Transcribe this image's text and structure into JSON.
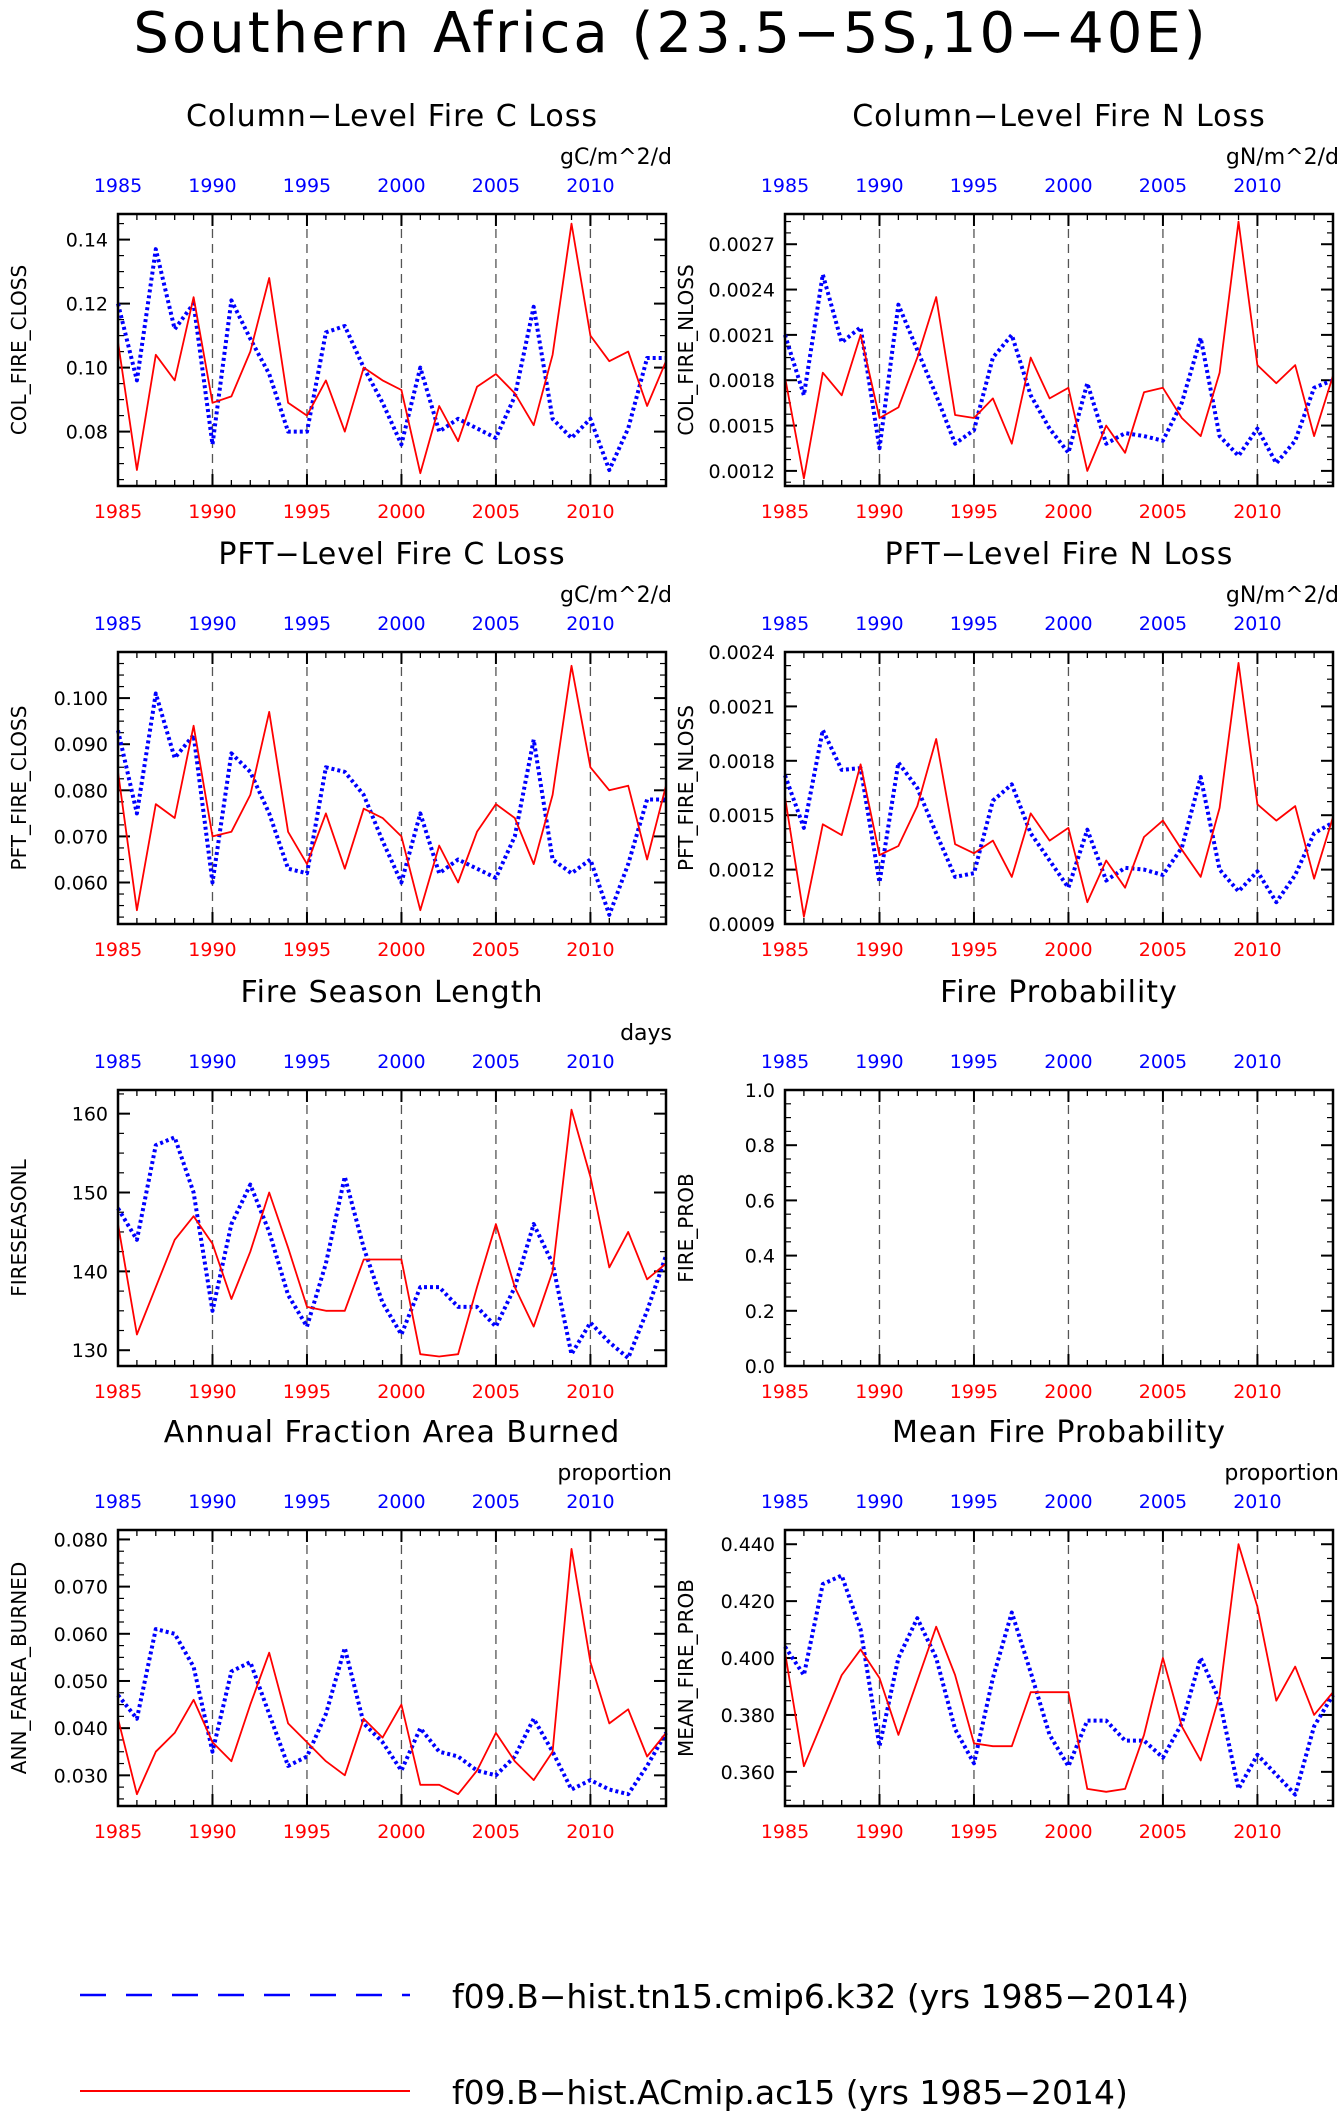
{
  "main_title": "Southern Africa (23.5−5S,10−40E)",
  "x_ticks": [
    "1985",
    "1990",
    "1995",
    "2000",
    "2005",
    "2010"
  ],
  "colors": {
    "series1": "#0000ff",
    "series2": "#ff0000",
    "text": "#000000",
    "grid": "#555555"
  },
  "legend": [
    {
      "label": "f09.B−hist.tn15.cmip6.k32 (yrs 1985−2014)",
      "color": "#0000ff",
      "style": "dashed"
    },
    {
      "label": "f09.B−hist.ACmip.ac15 (yrs 1985−2014)",
      "color": "#ff0000",
      "style": "solid"
    }
  ],
  "chart_data": [
    {
      "type": "line",
      "title": "Column−Level Fire C Loss",
      "units": "gC/m^2/d",
      "ylabel": "COL_FIRE_CLOSS",
      "xlim": [
        1985,
        2014
      ],
      "ylim": [
        0.063,
        0.148
      ],
      "y_ticks": [
        "0.08",
        "0.10",
        "0.12",
        "0.14"
      ],
      "x": [
        1985,
        1986,
        1987,
        1988,
        1989,
        1990,
        1991,
        1992,
        1993,
        1994,
        1995,
        1996,
        1997,
        1998,
        1999,
        2000,
        2001,
        2002,
        2003,
        2004,
        2005,
        2006,
        2007,
        2008,
        2009,
        2010,
        2011,
        2012,
        2013,
        2014
      ],
      "series": [
        {
          "style": "dashed",
          "color": "#0000ff",
          "values": [
            0.12,
            0.096,
            0.137,
            0.112,
            0.12,
            0.076,
            0.121,
            0.109,
            0.098,
            0.08,
            0.08,
            0.111,
            0.113,
            0.1,
            0.089,
            0.076,
            0.1,
            0.08,
            0.084,
            0.081,
            0.078,
            0.091,
            0.119,
            0.084,
            0.078,
            0.084,
            0.068,
            0.081,
            0.103,
            0.103
          ]
        },
        {
          "style": "solid",
          "color": "#ff0000",
          "values": [
            0.108,
            0.068,
            0.104,
            0.096,
            0.122,
            0.089,
            0.091,
            0.105,
            0.128,
            0.089,
            0.085,
            0.096,
            0.08,
            0.1,
            0.096,
            0.093,
            0.067,
            0.088,
            0.077,
            0.094,
            0.098,
            0.092,
            0.082,
            0.104,
            0.145,
            0.11,
            0.102,
            0.105,
            0.088,
            0.102
          ]
        }
      ]
    },
    {
      "type": "line",
      "title": "Column−Level Fire N Loss",
      "units": "gN/m^2/d",
      "ylabel": "COL_FIRE_NLOSS",
      "xlim": [
        1985,
        2014
      ],
      "ylim": [
        0.0011,
        0.0029
      ],
      "y_ticks": [
        "0.0012",
        "0.0015",
        "0.0018",
        "0.0021",
        "0.0024",
        "0.0027"
      ],
      "x": [
        1985,
        1986,
        1987,
        1988,
        1989,
        1990,
        1991,
        1992,
        1993,
        1994,
        1995,
        1996,
        1997,
        1998,
        1999,
        2000,
        2001,
        2002,
        2003,
        2004,
        2005,
        2006,
        2007,
        2008,
        2009,
        2010,
        2011,
        2012,
        2013,
        2014
      ],
      "series": [
        {
          "style": "dashed",
          "color": "#0000ff",
          "values": [
            0.0021,
            0.0017,
            0.0025,
            0.00205,
            0.00215,
            0.00135,
            0.0023,
            0.002,
            0.0017,
            0.00138,
            0.00147,
            0.00195,
            0.0021,
            0.0017,
            0.00148,
            0.00132,
            0.00178,
            0.00138,
            0.00145,
            0.00143,
            0.0014,
            0.00165,
            0.00208,
            0.00143,
            0.0013,
            0.00148,
            0.00125,
            0.0014,
            0.00175,
            0.0018
          ]
        },
        {
          "style": "solid",
          "color": "#ff0000",
          "values": [
            0.00182,
            0.00115,
            0.00185,
            0.0017,
            0.0021,
            0.00155,
            0.00162,
            0.00195,
            0.00235,
            0.00157,
            0.00155,
            0.00168,
            0.00138,
            0.00195,
            0.00168,
            0.00175,
            0.0012,
            0.0015,
            0.00132,
            0.00172,
            0.00175,
            0.00155,
            0.00143,
            0.00185,
            0.00285,
            0.0019,
            0.00178,
            0.0019,
            0.00143,
            0.00183
          ]
        }
      ]
    },
    {
      "type": "line",
      "title": "PFT−Level Fire C Loss",
      "units": "gC/m^2/d",
      "ylabel": "PFT_FIRE_CLOSS",
      "xlim": [
        1985,
        2014
      ],
      "ylim": [
        0.051,
        0.11
      ],
      "y_ticks": [
        "0.060",
        "0.070",
        "0.080",
        "0.090",
        "0.100"
      ],
      "x": [
        1985,
        1986,
        1987,
        1988,
        1989,
        1990,
        1991,
        1992,
        1993,
        1994,
        1995,
        1996,
        1997,
        1998,
        1999,
        2000,
        2001,
        2002,
        2003,
        2004,
        2005,
        2006,
        2007,
        2008,
        2009,
        2010,
        2011,
        2012,
        2013,
        2014
      ],
      "series": [
        {
          "style": "dashed",
          "color": "#0000ff",
          "values": [
            0.093,
            0.075,
            0.101,
            0.087,
            0.092,
            0.06,
            0.088,
            0.084,
            0.075,
            0.063,
            0.062,
            0.085,
            0.084,
            0.079,
            0.069,
            0.06,
            0.075,
            0.062,
            0.065,
            0.063,
            0.061,
            0.07,
            0.091,
            0.065,
            0.062,
            0.065,
            0.053,
            0.064,
            0.078,
            0.078
          ]
        },
        {
          "style": "solid",
          "color": "#ff0000",
          "values": [
            0.084,
            0.054,
            0.077,
            0.074,
            0.094,
            0.07,
            0.071,
            0.079,
            0.097,
            0.071,
            0.064,
            0.075,
            0.063,
            0.076,
            0.074,
            0.07,
            0.054,
            0.068,
            0.06,
            0.071,
            0.077,
            0.074,
            0.064,
            0.079,
            0.107,
            0.085,
            0.08,
            0.081,
            0.065,
            0.081
          ]
        }
      ]
    },
    {
      "type": "line",
      "title": "PFT−Level Fire N Loss",
      "units": "gN/m^2/d",
      "ylabel": "PFT_FIRE_NLOSS",
      "xlim": [
        1985,
        2014
      ],
      "ylim": [
        0.0009,
        0.0024
      ],
      "y_ticks": [
        "0.0009",
        "0.0012",
        "0.0015",
        "0.0018",
        "0.0021",
        "0.0024"
      ],
      "x": [
        1985,
        1986,
        1987,
        1988,
        1989,
        1990,
        1991,
        1992,
        1993,
        1994,
        1995,
        1996,
        1997,
        1998,
        1999,
        2000,
        2001,
        2002,
        2003,
        2004,
        2005,
        2006,
        2007,
        2008,
        2009,
        2010,
        2011,
        2012,
        2013,
        2014
      ],
      "series": [
        {
          "style": "dashed",
          "color": "#0000ff",
          "values": [
            0.00172,
            0.00143,
            0.00197,
            0.00175,
            0.00176,
            0.00113,
            0.00179,
            0.00165,
            0.0014,
            0.00116,
            0.00118,
            0.00158,
            0.00167,
            0.0014,
            0.00125,
            0.0011,
            0.00142,
            0.00114,
            0.00121,
            0.0012,
            0.00117,
            0.00132,
            0.00171,
            0.0012,
            0.00108,
            0.00119,
            0.00102,
            0.00117,
            0.0014,
            0.00146
          ]
        },
        {
          "style": "solid",
          "color": "#ff0000",
          "values": [
            0.0016,
            0.00094,
            0.00145,
            0.00139,
            0.00178,
            0.00128,
            0.00133,
            0.00155,
            0.00192,
            0.00134,
            0.00129,
            0.00136,
            0.00116,
            0.00151,
            0.00136,
            0.00143,
            0.00102,
            0.00125,
            0.0011,
            0.00138,
            0.00147,
            0.00131,
            0.00116,
            0.00154,
            0.00234,
            0.00156,
            0.00147,
            0.00155,
            0.00115,
            0.00149
          ]
        }
      ]
    },
    {
      "type": "line",
      "title": "Fire Season Length",
      "units": "days",
      "ylabel": "FIRESEASONL",
      "xlim": [
        1985,
        2014
      ],
      "ylim": [
        128.0,
        163.0
      ],
      "y_ticks": [
        "130",
        "140",
        "150",
        "160"
      ],
      "x": [
        1985,
        1986,
        1987,
        1988,
        1989,
        1990,
        1991,
        1992,
        1993,
        1994,
        1995,
        1996,
        1997,
        1998,
        1999,
        2000,
        2001,
        2002,
        2003,
        2004,
        2005,
        2006,
        2007,
        2008,
        2009,
        2010,
        2011,
        2012,
        2013,
        2014
      ],
      "series": [
        {
          "style": "dashed",
          "color": "#0000ff",
          "values": [
            148,
            144,
            156,
            157,
            150,
            135,
            146,
            151,
            145,
            137,
            133,
            141,
            152,
            143,
            136,
            132,
            138,
            138,
            135.5,
            135.5,
            133,
            138,
            146,
            141,
            129.5,
            133.5,
            131,
            129,
            135,
            142
          ]
        },
        {
          "style": "solid",
          "color": "#ff0000",
          "values": [
            146,
            132,
            138,
            144,
            147,
            143.5,
            136.5,
            142.5,
            150,
            143,
            135.5,
            135,
            135,
            141.5,
            141.5,
            141.5,
            129.5,
            129.2,
            129.5,
            138,
            146,
            138,
            133,
            140,
            160.5,
            152,
            140.5,
            145,
            139,
            141
          ]
        }
      ]
    },
    {
      "type": "line",
      "title": "Fire Probability",
      "units": "",
      "ylabel": "FIRE_PROB",
      "xlim": [
        1985,
        2014
      ],
      "ylim": [
        0.0,
        1.0
      ],
      "y_ticks": [
        "0.0",
        "0.2",
        "0.4",
        "0.6",
        "0.8",
        "1.0"
      ],
      "x": [],
      "series": []
    },
    {
      "type": "line",
      "title": "Annual Fraction Area Burned",
      "units": "proportion",
      "ylabel": "ANN_FAREA_BURNED",
      "xlim": [
        1985,
        2014
      ],
      "ylim": [
        0.0235,
        0.082
      ],
      "y_ticks": [
        "0.030",
        "0.040",
        "0.050",
        "0.060",
        "0.070",
        "0.080"
      ],
      "x": [
        1985,
        1986,
        1987,
        1988,
        1989,
        1990,
        1991,
        1992,
        1993,
        1994,
        1995,
        1996,
        1997,
        1998,
        1999,
        2000,
        2001,
        2002,
        2003,
        2004,
        2005,
        2006,
        2007,
        2008,
        2009,
        2010,
        2011,
        2012,
        2013,
        2014
      ],
      "series": [
        {
          "style": "dashed",
          "color": "#0000ff",
          "values": [
            0.047,
            0.042,
            0.061,
            0.06,
            0.053,
            0.035,
            0.052,
            0.054,
            0.043,
            0.032,
            0.034,
            0.043,
            0.057,
            0.041,
            0.037,
            0.031,
            0.04,
            0.035,
            0.034,
            0.031,
            0.03,
            0.034,
            0.042,
            0.035,
            0.027,
            0.029,
            0.027,
            0.026,
            0.032,
            0.039
          ]
        },
        {
          "style": "solid",
          "color": "#ff0000",
          "values": [
            0.042,
            0.026,
            0.035,
            0.039,
            0.046,
            0.037,
            0.033,
            0.045,
            0.056,
            0.041,
            0.037,
            0.033,
            0.03,
            0.042,
            0.038,
            0.045,
            0.028,
            0.028,
            0.026,
            0.031,
            0.039,
            0.033,
            0.029,
            0.035,
            0.078,
            0.054,
            0.041,
            0.044,
            0.034,
            0.039
          ]
        }
      ]
    },
    {
      "type": "line",
      "title": "Mean Fire Probability",
      "units": "proportion",
      "ylabel": "MEAN_FIRE_PROB",
      "xlim": [
        1985,
        2014
      ],
      "ylim": [
        0.348,
        0.445
      ],
      "y_ticks": [
        "0.360",
        "0.380",
        "0.400",
        "0.420",
        "0.440"
      ],
      "x": [
        1985,
        1986,
        1987,
        1988,
        1989,
        1990,
        1991,
        1992,
        1993,
        1994,
        1995,
        1996,
        1997,
        1998,
        1999,
        2000,
        2001,
        2002,
        2003,
        2004,
        2005,
        2006,
        2007,
        2008,
        2009,
        2010,
        2011,
        2012,
        2013,
        2014
      ],
      "series": [
        {
          "style": "dashed",
          "color": "#0000ff",
          "values": [
            0.404,
            0.394,
            0.426,
            0.429,
            0.41,
            0.369,
            0.4,
            0.414,
            0.4,
            0.375,
            0.363,
            0.393,
            0.416,
            0.395,
            0.373,
            0.362,
            0.378,
            0.378,
            0.371,
            0.371,
            0.365,
            0.377,
            0.4,
            0.385,
            0.354,
            0.366,
            0.359,
            0.352,
            0.376,
            0.387
          ]
        },
        {
          "style": "solid",
          "color": "#ff0000",
          "values": [
            0.402,
            0.362,
            0.378,
            0.394,
            0.403,
            0.393,
            0.373,
            0.392,
            0.411,
            0.394,
            0.37,
            0.369,
            0.369,
            0.388,
            0.388,
            0.388,
            0.354,
            0.353,
            0.354,
            0.373,
            0.4,
            0.376,
            0.364,
            0.387,
            0.44,
            0.418,
            0.385,
            0.397,
            0.38,
            0.388
          ]
        }
      ]
    }
  ]
}
